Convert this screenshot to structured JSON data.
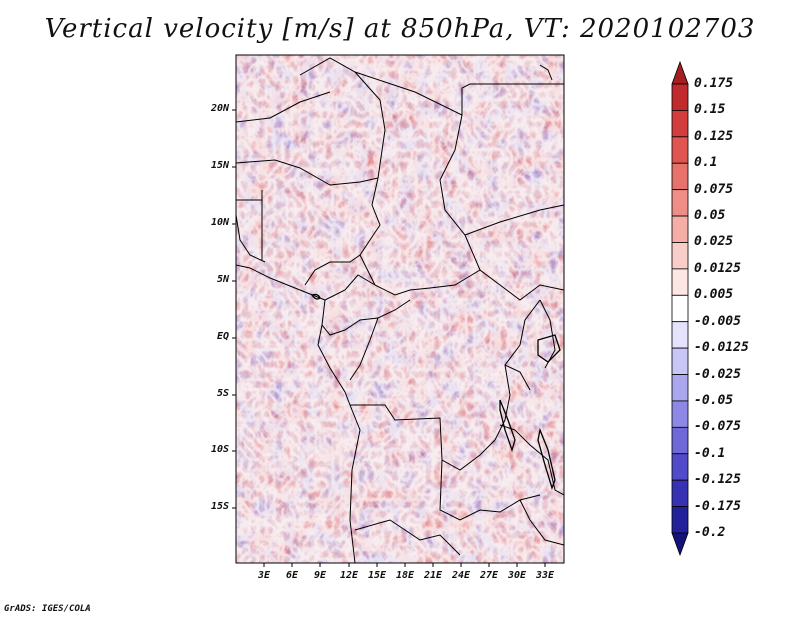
{
  "title": "Vertical velocity [m/s] at 850hPa, VT: 2020102703",
  "map": {
    "variable": "Vertical velocity",
    "units": "m/s",
    "level": "850hPa",
    "valid_time": "2020102703",
    "lat_labels": [
      "20N",
      "15N",
      "10N",
      "5N",
      "EQ",
      "5S",
      "10S",
      "15S"
    ],
    "lon_labels": [
      "3E",
      "6E",
      "9E",
      "12E",
      "15E",
      "18E",
      "21E",
      "24E",
      "27E",
      "30E",
      "33E"
    ]
  },
  "colorbar": {
    "levels": [
      "0.175",
      "0.15",
      "0.125",
      "0.1",
      "0.075",
      "0.05",
      "0.025",
      "0.0125",
      "0.005",
      "-0.005",
      "-0.0125",
      "-0.025",
      "-0.05",
      "-0.075",
      "-0.1",
      "-0.125",
      "-0.175",
      "-0.2"
    ],
    "colors": [
      "#a51e22",
      "#c12a2d",
      "#d33c3c",
      "#de5552",
      "#e7716b",
      "#ee8e86",
      "#f4aea6",
      "#f9cdc8",
      "#fde7e4",
      "#ffffff",
      "#e4e3fb",
      "#c8c6f5",
      "#aaa7ee",
      "#8c88e4",
      "#6e68d8",
      "#514bc9",
      "#3732b4",
      "#22219a",
      "#14127a"
    ]
  },
  "credit": "GrADS: IGES/COLA"
}
